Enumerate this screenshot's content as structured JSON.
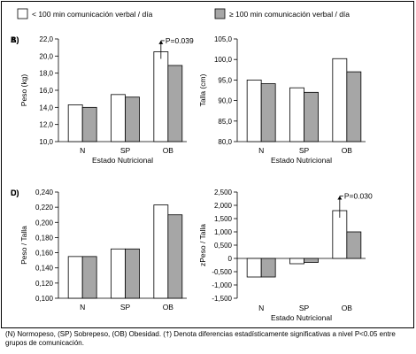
{
  "legend": {
    "items": [
      {
        "label": "< 100 min comunicación verbal / día",
        "color": "#ffffff"
      },
      {
        "label": "≥ 100 min comunicación verbal / día",
        "color": "#a6a6a6"
      }
    ]
  },
  "caption": "(N) Normopeso, (SP) Sobrepeso, (OB) Obesidad. (†) Denota diferencias estadísticamente significativas a nivel P<0.05 entre grupos de comunicación.",
  "chart_data": [
    {
      "panel": "A)",
      "type": "bar",
      "categories": [
        "N",
        "SP",
        "OB"
      ],
      "series": [
        {
          "values": [
            14.3,
            15.5,
            20.5
          ]
        },
        {
          "values": [
            14.0,
            15.2,
            18.9
          ]
        }
      ],
      "ylabel": "Peso (kg)",
      "xlabel": "Estado Nutricional",
      "ylim": [
        10.0,
        22.0
      ],
      "yticks": [
        10.0,
        12.0,
        14.0,
        16.0,
        18.0,
        20.0,
        22.0
      ],
      "ytick_labels": [
        "10,0",
        "12,0",
        "14,0",
        "16,0",
        "18,0",
        "20,0",
        "22,0"
      ],
      "annotation": {
        "category": "OB",
        "text": "P=0.039",
        "top": 21.8
      }
    },
    {
      "panel": "B)",
      "type": "bar",
      "categories": [
        "N",
        "SP",
        "OB"
      ],
      "series": [
        {
          "values": [
            95.0,
            93.1,
            100.2
          ]
        },
        {
          "values": [
            94.1,
            92.0,
            97.0
          ]
        }
      ],
      "ylabel": "Talla (cm)",
      "xlabel": "Estado Nutricional",
      "ylim": [
        80.0,
        105.0
      ],
      "yticks": [
        80.0,
        85.0,
        90.0,
        95.0,
        100.0,
        105.0
      ],
      "ytick_labels": [
        "80,0",
        "85,0",
        "90,0",
        "95,0",
        "100,0",
        "105,0"
      ]
    },
    {
      "panel": "C)",
      "type": "bar",
      "categories": [
        "N",
        "SP",
        "OB"
      ],
      "series": [
        {
          "values": [
            0.155,
            0.165,
            0.223
          ]
        },
        {
          "values": [
            0.155,
            0.165,
            0.21
          ]
        }
      ],
      "ylabel": "Peso / Talla",
      "xlabel": "",
      "ylim": [
        0.1,
        0.24
      ],
      "yticks": [
        0.1,
        0.12,
        0.14,
        0.16,
        0.18,
        0.2,
        0.22,
        0.24
      ],
      "ytick_labels": [
        "0,100",
        "0,120",
        "0,140",
        "0,160",
        "0,180",
        "0,200",
        "0,220",
        "0,240"
      ]
    },
    {
      "panel": "D)",
      "type": "bar",
      "categories": [
        "N",
        "SP",
        "OB"
      ],
      "series": [
        {
          "values": [
            -0.7,
            -0.2,
            1.8
          ]
        },
        {
          "values": [
            -0.7,
            -0.15,
            1.0
          ]
        }
      ],
      "ylabel": "zPeso / Talla",
      "xlabel": "Estado Nutricional",
      "ylim": [
        -1.5,
        2.5
      ],
      "yticks": [
        -1.5,
        -1.0,
        -0.5,
        0.0,
        0.5,
        1.0,
        1.5,
        2.0,
        2.5
      ],
      "ytick_labels": [
        "-1,500",
        "-1,000",
        "-0,500",
        "0",
        "0,500",
        "1,000",
        "1,500",
        "2,000",
        "2,500"
      ],
      "annotation": {
        "category": "OB",
        "text": "P=0.030",
        "top": 2.35
      }
    }
  ]
}
